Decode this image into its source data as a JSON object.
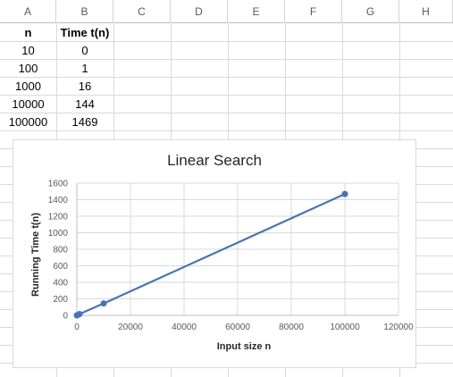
{
  "columns": [
    "A",
    "B",
    "C",
    "D",
    "E",
    "F",
    "G",
    "H"
  ],
  "table": {
    "headers": [
      "n",
      "Time t(n)"
    ],
    "rows": [
      [
        "10",
        "0"
      ],
      [
        "100",
        "1"
      ],
      [
        "1000",
        "16"
      ],
      [
        "10000",
        "144"
      ],
      [
        "100000",
        "1469"
      ]
    ]
  },
  "colors": {
    "series": "#4472c4",
    "grid": "#d9d9d9",
    "axis": "#bfbfbf"
  },
  "chart_data": {
    "type": "scatter",
    "title": "Linear Search",
    "xlabel": "Input size n",
    "ylabel": "Running Time t(n)",
    "x": [
      10,
      100,
      1000,
      10000,
      100000
    ],
    "y": [
      0,
      1,
      16,
      144,
      1469
    ],
    "xlim": [
      0,
      120000
    ],
    "ylim": [
      0,
      1600
    ],
    "xticks": [
      "0",
      "20000",
      "40000",
      "60000",
      "80000",
      "100000",
      "120000"
    ],
    "yticks": [
      "0",
      "200",
      "400",
      "600",
      "800",
      "1000",
      "1200",
      "1400",
      "1600"
    ],
    "grid": true,
    "legend": "none",
    "lines": true
  }
}
